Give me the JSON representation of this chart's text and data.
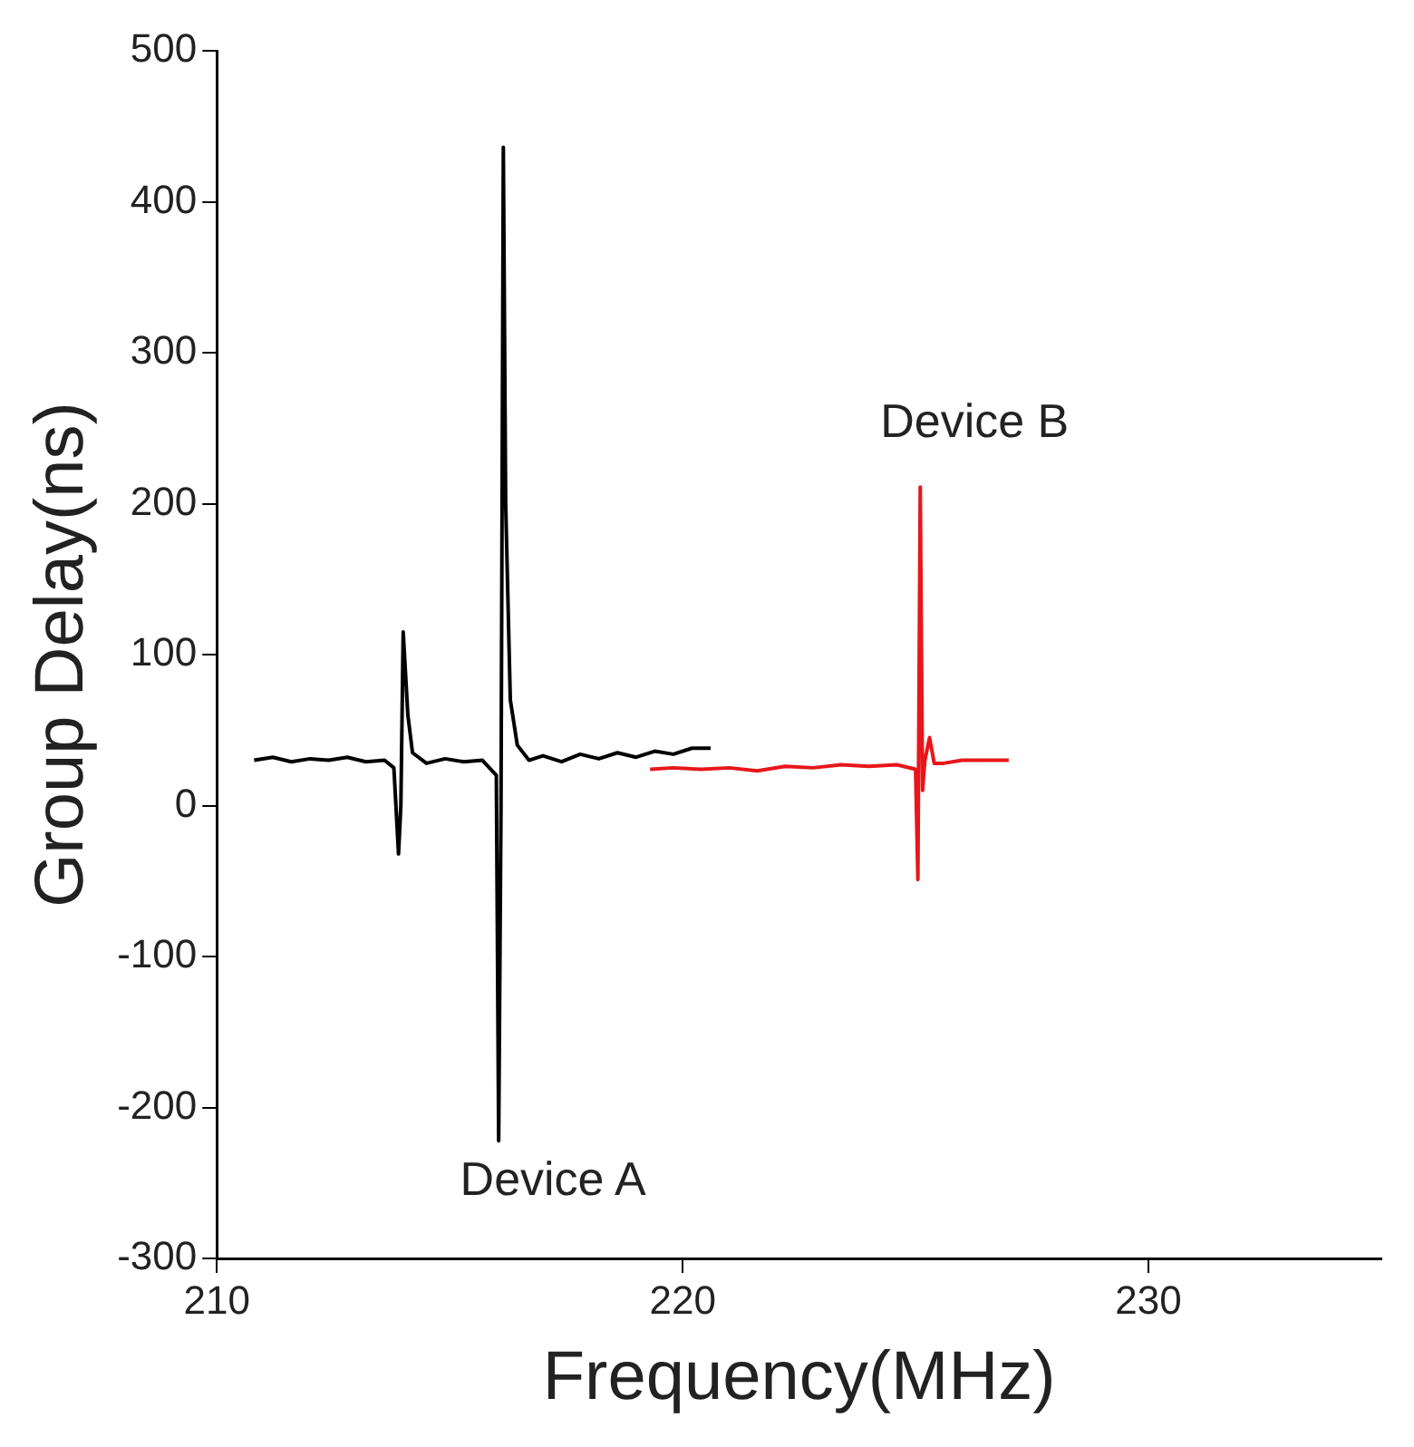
{
  "chart_data": {
    "type": "line",
    "xlabel": "Frequency(MHz)",
    "ylabel": "Group Delay(ns)",
    "xlim": [
      210,
      235
    ],
    "xticks": [
      210,
      220,
      230
    ],
    "ylim": [
      -300,
      500
    ],
    "yticks": [
      -300,
      -200,
      -100,
      0,
      100,
      200,
      300,
      400,
      500
    ],
    "grid": false,
    "legend": false,
    "marker": "none",
    "line_style": "solid",
    "series": [
      {
        "name": "Device A",
        "color": "#000000",
        "x": [
          210.8,
          211.2,
          211.6,
          212.0,
          212.4,
          212.8,
          213.2,
          213.6,
          213.8,
          213.9,
          213.95,
          214.0,
          214.1,
          214.2,
          214.5,
          214.9,
          215.3,
          215.7,
          216.0,
          216.05,
          216.1,
          216.15,
          216.2,
          216.3,
          216.45,
          216.7,
          217.0,
          217.4,
          217.8,
          218.2,
          218.6,
          219.0,
          219.4,
          219.8,
          220.2,
          220.6
        ],
        "values": [
          30,
          32,
          29,
          31,
          30,
          32,
          29,
          30,
          25,
          -32,
          0,
          115,
          60,
          35,
          28,
          31,
          29,
          30,
          20,
          -222,
          0,
          436,
          200,
          70,
          40,
          30,
          33,
          29,
          34,
          31,
          35,
          32,
          36,
          34,
          38,
          38
        ]
      },
      {
        "name": "Device B",
        "color": "#e8161a",
        "x": [
          219.3,
          219.8,
          220.4,
          221.0,
          221.6,
          222.2,
          222.8,
          223.4,
          224.0,
          224.6,
          225.0,
          225.05,
          225.1,
          225.15,
          225.2,
          225.3,
          225.4,
          225.6,
          226.0,
          226.5,
          227.0
        ],
        "values": [
          24,
          25,
          24,
          25,
          23,
          26,
          25,
          27,
          26,
          27,
          24,
          -49,
          211,
          10,
          30,
          45,
          28,
          28,
          30,
          30,
          30
        ]
      }
    ]
  }
}
